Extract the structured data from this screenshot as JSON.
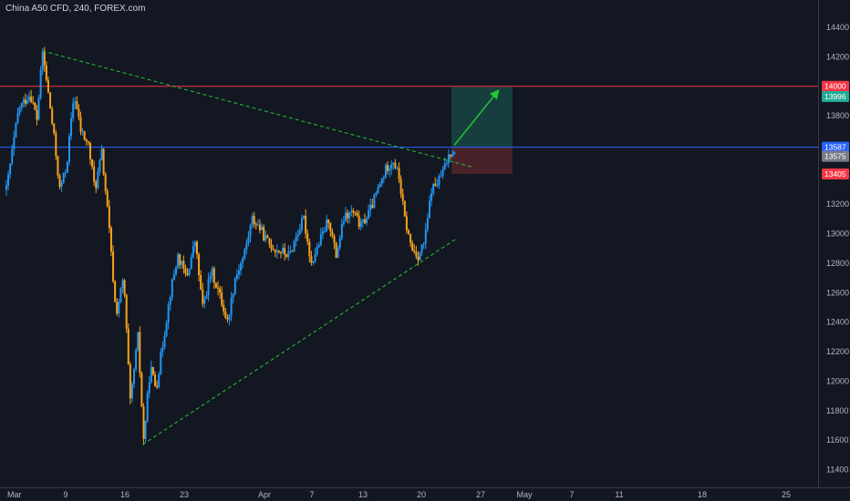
{
  "header": {
    "title": "China A50 CFD, 240, FOREX.com"
  },
  "chart_data": {
    "type": "candlestick",
    "title": "China A50 CFD, 240, FOREX.com",
    "ylim": [
      11350,
      14600
    ],
    "y_ticks": [
      11400,
      11600,
      11800,
      12000,
      12200,
      12400,
      12600,
      12800,
      13000,
      13200,
      13400,
      13600,
      13800,
      14000,
      14200,
      14400
    ],
    "x_ticks": [
      "Mar",
      "9",
      "16",
      "23",
      "Apr",
      "7",
      "13",
      "20",
      "27",
      "May",
      "7",
      "11",
      "18",
      "25"
    ],
    "grid": false,
    "colors": {
      "up": "#2196f3",
      "down": "#f7a21b",
      "background": "#131722"
    },
    "price_anchors": [
      {
        "day": 0.0,
        "price": 13300
      },
      {
        "day": 1.3,
        "price": 13850
      },
      {
        "day": 2.5,
        "price": 13950
      },
      {
        "day": 3.2,
        "price": 13780
      },
      {
        "day": 3.8,
        "price": 14230
      },
      {
        "day": 4.4,
        "price": 13950
      },
      {
        "day": 5.0,
        "price": 13650
      },
      {
        "day": 5.6,
        "price": 13300
      },
      {
        "day": 6.3,
        "price": 13450
      },
      {
        "day": 7.1,
        "price": 13950
      },
      {
        "day": 7.8,
        "price": 13700
      },
      {
        "day": 8.6,
        "price": 13600
      },
      {
        "day": 9.3,
        "price": 13300
      },
      {
        "day": 10.0,
        "price": 13550
      },
      {
        "day": 10.7,
        "price": 13100
      },
      {
        "day": 11.5,
        "price": 12450
      },
      {
        "day": 12.3,
        "price": 12700
      },
      {
        "day": 13.0,
        "price": 11850
      },
      {
        "day": 13.8,
        "price": 12300
      },
      {
        "day": 14.4,
        "price": 11600
      },
      {
        "day": 15.1,
        "price": 12100
      },
      {
        "day": 15.7,
        "price": 11950
      },
      {
        "day": 16.4,
        "price": 12250
      },
      {
        "day": 17.2,
        "price": 12600
      },
      {
        "day": 18.0,
        "price": 12850
      },
      {
        "day": 18.9,
        "price": 12700
      },
      {
        "day": 19.8,
        "price": 12950
      },
      {
        "day": 20.6,
        "price": 12500
      },
      {
        "day": 21.5,
        "price": 12750
      },
      {
        "day": 22.3,
        "price": 12600
      },
      {
        "day": 23.2,
        "price": 12400
      },
      {
        "day": 24.0,
        "price": 12700
      },
      {
        "day": 24.9,
        "price": 12850
      },
      {
        "day": 25.8,
        "price": 13100
      },
      {
        "day": 26.5,
        "price": 13050
      },
      {
        "day": 27.3,
        "price": 12950
      },
      {
        "day": 28.1,
        "price": 12900
      },
      {
        "day": 28.9,
        "price": 12880
      },
      {
        "day": 29.7,
        "price": 12850
      },
      {
        "day": 30.5,
        "price": 13000
      },
      {
        "day": 31.2,
        "price": 13100
      },
      {
        "day": 32.0,
        "price": 12800
      },
      {
        "day": 32.9,
        "price": 12950
      },
      {
        "day": 33.8,
        "price": 13100
      },
      {
        "day": 34.6,
        "price": 12850
      },
      {
        "day": 35.4,
        "price": 13100
      },
      {
        "day": 36.3,
        "price": 13150
      },
      {
        "day": 37.2,
        "price": 13050
      },
      {
        "day": 38.1,
        "price": 13150
      },
      {
        "day": 39.0,
        "price": 13300
      },
      {
        "day": 39.9,
        "price": 13450
      },
      {
        "day": 40.6,
        "price": 13500
      },
      {
        "day": 41.2,
        "price": 13380
      },
      {
        "day": 41.8,
        "price": 13100
      },
      {
        "day": 42.5,
        "price": 12900
      },
      {
        "day": 43.2,
        "price": 12850
      },
      {
        "day": 43.9,
        "price": 12950
      },
      {
        "day": 44.6,
        "price": 13300
      },
      {
        "day": 45.3,
        "price": 13350
      },
      {
        "day": 46.0,
        "price": 13450
      },
      {
        "day": 46.5,
        "price": 13550
      },
      {
        "day": 47.0,
        "price": 13575
      }
    ],
    "drawings": [
      {
        "name": "upper-trendline",
        "from": {
          "day": 3.8,
          "price": 14240
        },
        "to": {
          "day": 49.0,
          "price": 13450
        },
        "color": "#22c534",
        "style": "dashed"
      },
      {
        "name": "lower-trendline",
        "from": {
          "day": 14.3,
          "price": 11570
        },
        "to": {
          "day": 47.3,
          "price": 12970
        },
        "color": "#22c534",
        "style": "dashed"
      },
      {
        "name": "target-arrow",
        "from": {
          "day": 47.0,
          "price": 13600
        },
        "to": {
          "day": 51.6,
          "price": 13970
        },
        "color": "#22c534",
        "style": "solid"
      }
    ],
    "position_box": {
      "from_day": 46.7,
      "to_day": 53.1,
      "target": 13996,
      "entry": 13587,
      "stop": 13405,
      "profit_color": "#1b5e55",
      "loss_color": "#6e2a2f"
    },
    "horizontal_lines": [
      {
        "name": "resistance-line",
        "price": 14000,
        "color": "#f23645"
      },
      {
        "name": "current-line",
        "price": 13587,
        "color": "#2962ff"
      }
    ],
    "price_badges": [
      {
        "name": "badge-resistance",
        "value": "14000",
        "price": 14000,
        "color": "#f23645"
      },
      {
        "name": "badge-target",
        "value": "13996",
        "price": 13930,
        "color": "#22ab94"
      },
      {
        "name": "badge-entry",
        "value": "13587",
        "price": 13587,
        "color": "#2962ff"
      },
      {
        "name": "badge-last",
        "value": "13575",
        "price": 13525,
        "color": "#787b86"
      },
      {
        "name": "badge-stop",
        "value": "13405",
        "price": 13405,
        "color": "#f23645"
      }
    ]
  }
}
